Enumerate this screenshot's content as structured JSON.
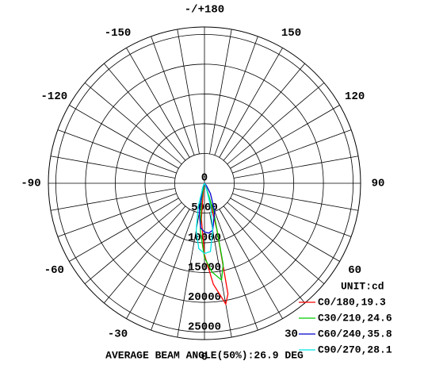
{
  "chart_data": {
    "type": "polar",
    "rlim": [
      0,
      26250
    ],
    "rticks": [
      0,
      5000,
      10000,
      15000,
      20000,
      25000
    ],
    "thetaticks": [
      {
        "value": 180,
        "label": "-/+180"
      },
      150,
      120,
      90,
      60,
      30,
      0,
      -30,
      -60,
      -90,
      -120,
      -150
    ],
    "unit_label": "UNIT:cd",
    "annotation": "AVERAGE BEAM ANGLE(50%):26.9 DEG",
    "series": [
      {
        "name": "C0/180,19.3",
        "color": "#ff0000",
        "theta": [
          -15,
          -10,
          -5,
          0,
          5,
          10,
          12,
          15,
          20,
          25
        ],
        "values": [
          0,
          1000,
          6000,
          12000,
          17000,
          20600,
          19000,
          8000,
          1500,
          0
        ]
      },
      {
        "name": "C30/210,24.6",
        "color": "#00cc00",
        "theta": [
          -20,
          -15,
          -10,
          -5,
          0,
          5,
          10,
          13,
          18,
          25,
          30
        ],
        "values": [
          0,
          500,
          3000,
          8000,
          12500,
          15000,
          16500,
          14000,
          5000,
          500,
          0
        ]
      },
      {
        "name": "C60/240,35.8",
        "color": "#0000cc",
        "theta": [
          -30,
          -20,
          -10,
          -5,
          0,
          5,
          10,
          20,
          30,
          40,
          50
        ],
        "values": [
          0,
          1000,
          5000,
          7500,
          8200,
          8400,
          8000,
          5000,
          2000,
          500,
          0
        ]
      },
      {
        "name": "C90/270,28.1",
        "color": "#00e5e5",
        "theta": [
          -35,
          -25,
          -15,
          -10,
          -5,
          0,
          5,
          10,
          15,
          25,
          35
        ],
        "values": [
          0,
          500,
          4000,
          8000,
          11000,
          11800,
          11500,
          8000,
          4000,
          500,
          0
        ]
      }
    ]
  }
}
